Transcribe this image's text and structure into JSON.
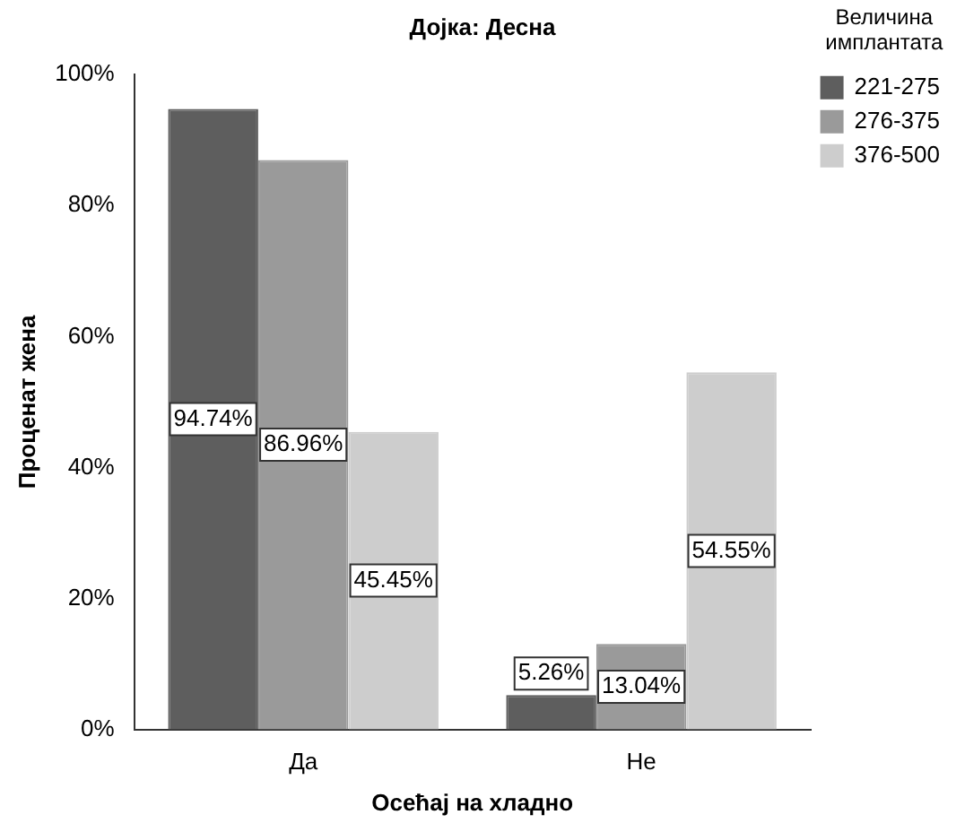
{
  "chart_data": {
    "type": "bar",
    "title": "Дојка: Десна",
    "xlabel": "Осећај на хладно",
    "ylabel": "Проценат жена",
    "legend_title": "Величина\nимплантата",
    "legend": "right",
    "grid": false,
    "categories": [
      "Да",
      "Не"
    ],
    "ylim": [
      0,
      100
    ],
    "yticks": [
      {
        "value": 0,
        "label": "0%"
      },
      {
        "value": 20,
        "label": "20%"
      },
      {
        "value": 40,
        "label": "40%"
      },
      {
        "value": 60,
        "label": "60%"
      },
      {
        "value": 80,
        "label": "80%"
      },
      {
        "value": 100,
        "label": "100%"
      }
    ],
    "series": [
      {
        "name": "221-275",
        "color": "#5e5e5e",
        "values": [
          94.74,
          5.26
        ],
        "value_labels": [
          "94.74%",
          "5.26%"
        ]
      },
      {
        "name": "276-375",
        "color": "#9a9a9a",
        "values": [
          86.96,
          13.04
        ],
        "value_labels": [
          "86.96%",
          "13.04%"
        ]
      },
      {
        "name": "376-500",
        "color": "#cdcdcd",
        "values": [
          45.45,
          54.55
        ],
        "value_labels": [
          "45.45%",
          "54.55%"
        ]
      }
    ]
  }
}
